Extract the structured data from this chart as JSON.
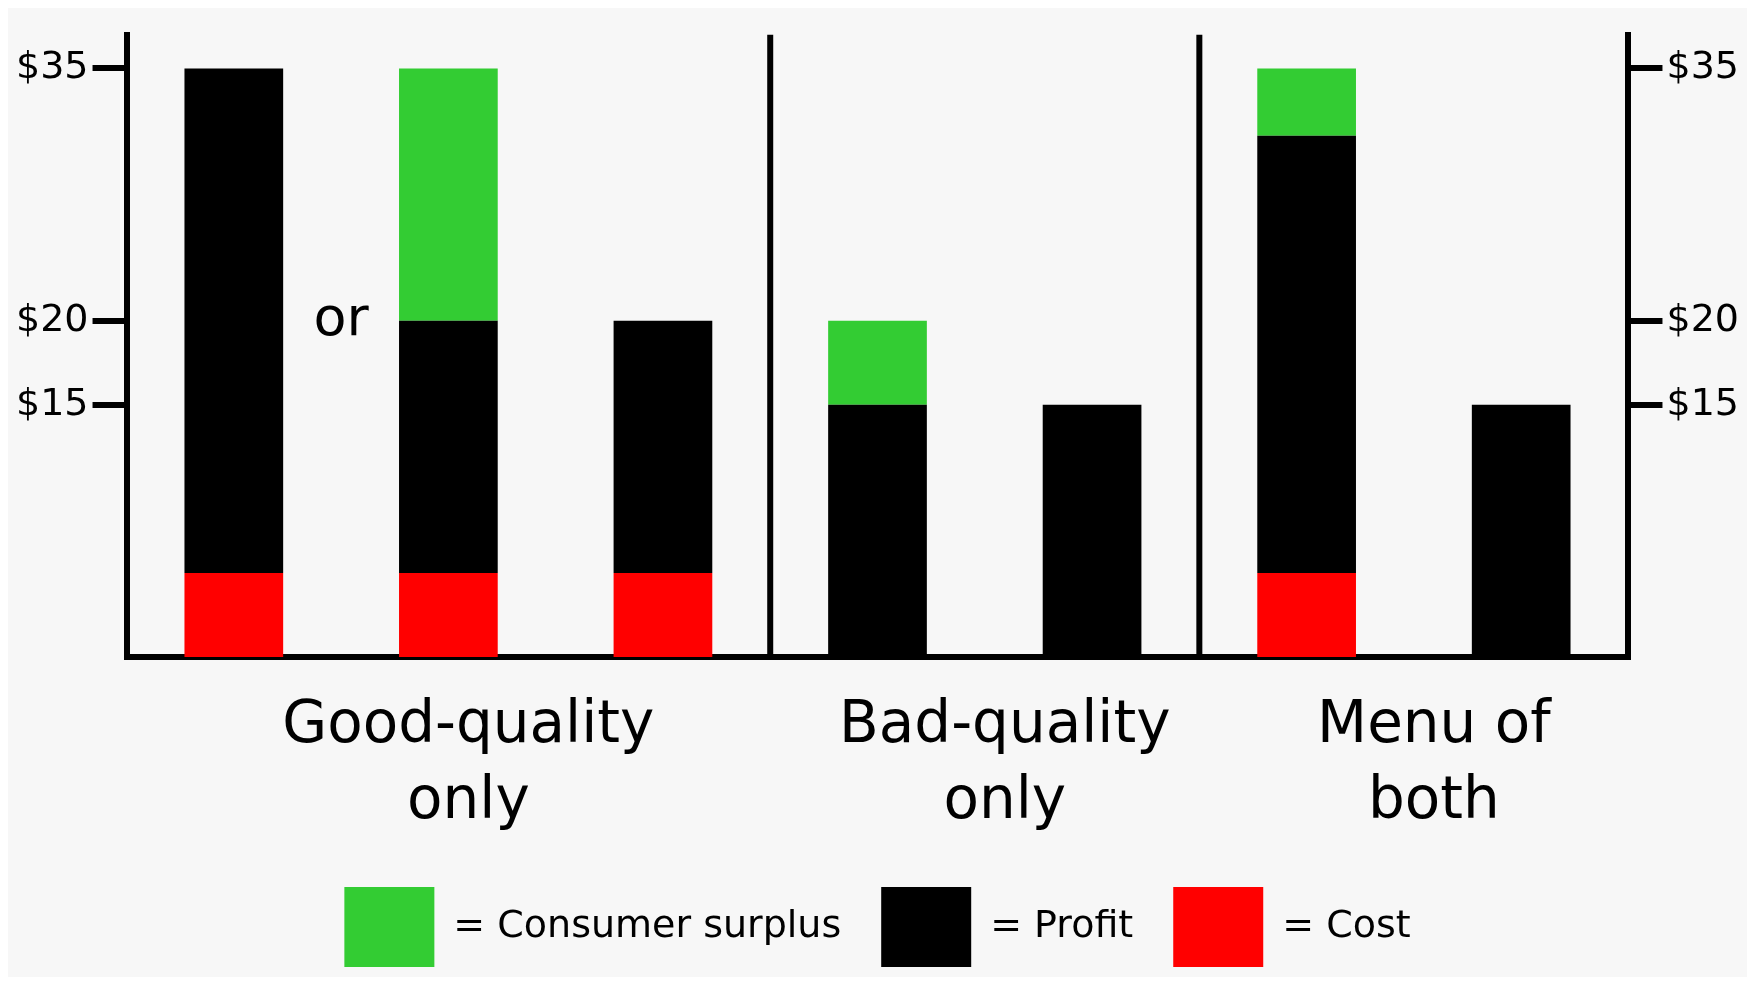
{
  "chart_data": {
    "type": "bar",
    "stacked": true,
    "categories": [
      null,
      null,
      null,
      null,
      null,
      null,
      null
    ],
    "series": [
      {
        "name": "= Cost",
        "color": "#ff0000",
        "values": [
          5,
          5,
          5,
          null,
          null,
          5,
          null
        ]
      },
      {
        "name": "= Profit",
        "color": "#000000",
        "values": [
          30,
          15,
          15,
          15,
          15,
          26,
          15
        ]
      },
      {
        "name": "= Consumer surplus",
        "color": "#33cc33",
        "values": [
          null,
          15,
          null,
          5,
          null,
          4,
          null
        ]
      }
    ],
    "ylim": [
      0,
      37
    ],
    "yticks": [
      {
        "value": 15,
        "label": "$15"
      },
      {
        "value": 20,
        "label": "$20"
      },
      {
        "value": 35,
        "label": "$35"
      }
    ],
    "y2lim": [
      0,
      37
    ],
    "y2ticks": [
      {
        "value": 15,
        "label": "$15"
      },
      {
        "value": 20,
        "label": "$20"
      },
      {
        "value": 35,
        "label": "$35"
      }
    ],
    "annotations": [
      "or",
      "Good-quality only",
      "Bad-quality only",
      "Menu of both"
    ],
    "grid": false,
    "legend": "bottom"
  }
}
